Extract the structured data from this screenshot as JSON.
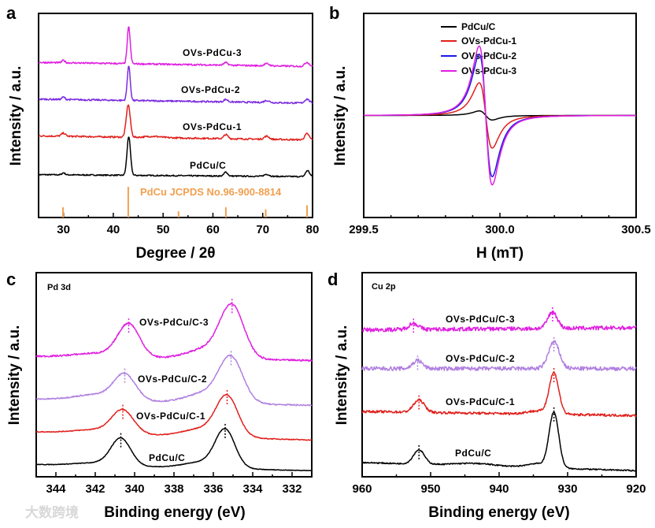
{
  "watermark": "大数跨境",
  "chart_data": [
    {
      "panel": "a",
      "type": "line",
      "xlabel": "Degree / 2θ",
      "ylabel": "Intensity / a.u.",
      "xlim": [
        25,
        80
      ],
      "ylim": [
        0,
        100
      ],
      "xticks": [
        30,
        40,
        50,
        60,
        70,
        80
      ],
      "xtick_labels": [
        "30",
        "40",
        "50",
        "60",
        "70",
        "80"
      ],
      "reference": {
        "label": "PdCu JCPDS No.96-900-8814",
        "color": "#f0a050",
        "lines": [
          [
            29.9,
            5
          ],
          [
            43.0,
            15
          ],
          [
            53.1,
            3
          ],
          [
            62.6,
            5
          ],
          [
            70.6,
            4
          ],
          [
            78.9,
            6
          ]
        ]
      },
      "series": [
        {
          "name": "PdCu/C",
          "color": "#000000",
          "baseline": [
            21,
            20
          ],
          "noise": 0.3,
          "peaks": [
            [
              30.0,
              1,
              0.3
            ],
            [
              43.1,
              19,
              0.35
            ],
            [
              62.6,
              2,
              0.35
            ],
            [
              70.8,
              1,
              0.5
            ],
            [
              79.0,
              3,
              0.4
            ]
          ]
        },
        {
          "name": "OVs-PdCu-1",
          "color": "#e0201c",
          "baseline": [
            40,
            38
          ],
          "noise": 0.4,
          "peaks": [
            [
              30.0,
              1.5,
              0.4
            ],
            [
              43.0,
              16,
              0.4
            ],
            [
              48.0,
              0.6,
              1.5
            ],
            [
              62.6,
              2,
              0.4
            ],
            [
              70.8,
              1.5,
              0.5
            ],
            [
              78.9,
              3,
              0.45
            ]
          ]
        },
        {
          "name": "OVs-PdCu-2",
          "color": "#7b2be0",
          "baseline": [
            58,
            56
          ],
          "noise": 0.4,
          "peaks": [
            [
              30.0,
              1.2,
              0.3
            ],
            [
              43.1,
              17,
              0.3
            ],
            [
              62.6,
              1.2,
              0.4
            ],
            [
              70.8,
              1,
              0.5
            ],
            [
              78.9,
              2,
              0.45
            ]
          ]
        },
        {
          "name": "OVs-PdCu-3",
          "color": "#e020e0",
          "baseline": [
            76,
            74
          ],
          "noise": 0.4,
          "peaks": [
            [
              30.0,
              1.2,
              0.3
            ],
            [
              43.1,
              18,
              0.3
            ],
            [
              62.6,
              1.2,
              0.4
            ],
            [
              70.8,
              1,
              0.5
            ],
            [
              78.9,
              2,
              0.45
            ]
          ]
        }
      ]
    },
    {
      "panel": "b",
      "type": "line",
      "xlabel": "H (mT)",
      "ylabel": "Intensity / a.u.",
      "xlim": [
        299.5,
        300.5
      ],
      "ylim": [
        -50,
        50
      ],
      "xticks": [
        299.5,
        300.0,
        300.5
      ],
      "xtick_labels": [
        "299.5",
        "300.0",
        "300.5"
      ],
      "legend_position": "top-right",
      "series": [
        {
          "name": "PdCu/C",
          "color": "#000000",
          "center": 299.948,
          "width": 0.024,
          "amplitude": 2.2,
          "baseline": 0
        },
        {
          "name": "OVs-PdCu-1",
          "color": "#e0201c",
          "center": 299.948,
          "width": 0.024,
          "amplitude": 16,
          "baseline": 0
        },
        {
          "name": "OVs-PdCu-2",
          "color": "#1a1ae6",
          "center": 299.948,
          "width": 0.024,
          "amplitude": 30,
          "baseline": 0
        },
        {
          "name": "OVs-PdCu-3",
          "color": "#e020e0",
          "center": 299.948,
          "width": 0.024,
          "amplitude": 34,
          "baseline": 0
        }
      ]
    },
    {
      "panel": "c",
      "type": "line",
      "corner_label": "Pd 3d",
      "xlabel": "Binding energy (eV)",
      "ylabel": "Intensity / a.u.",
      "xlim": [
        345,
        331
      ],
      "ylim": [
        0,
        100
      ],
      "xticks": [
        344,
        342,
        340,
        338,
        336,
        334,
        332
      ],
      "xtick_labels": [
        "344",
        "342",
        "340",
        "338",
        "336",
        "334",
        "332"
      ],
      "series": [
        {
          "name": "PdCu/C",
          "color": "#000000",
          "baseline": [
            6,
            3
          ],
          "noise": 0.15,
          "markers": [
            340.7,
            335.4
          ],
          "peaks": [
            [
              340.7,
              13,
              0.5
            ],
            [
              335.4,
              18,
              0.5
            ],
            [
              341.8,
              1.5,
              1.2
            ],
            [
              336.5,
              3,
              1.0
            ]
          ]
        },
        {
          "name": "OVs-PdCu/C-1",
          "color": "#e0201c",
          "baseline": [
            22,
            18
          ],
          "noise": 0.2,
          "markers": [
            340.6,
            335.3
          ],
          "peaks": [
            [
              340.6,
              11,
              0.55
            ],
            [
              335.3,
              19,
              0.55
            ],
            [
              341.8,
              2,
              1.2
            ],
            [
              336.5,
              4,
              1.0
            ]
          ]
        },
        {
          "name": "OVs-PdCu/C-2",
          "color": "#b080e0",
          "baseline": [
            38,
            35
          ],
          "noise": 0.3,
          "markers": [
            340.5,
            335.1
          ],
          "peaks": [
            [
              340.5,
              12,
              0.55
            ],
            [
              335.1,
              21,
              0.6
            ],
            [
              341.8,
              3,
              1.2
            ],
            [
              336.3,
              5,
              1.0
            ]
          ]
        },
        {
          "name": "OVs-PdCu/C-3",
          "color": "#e020e0",
          "baseline": [
            59,
            57
          ],
          "noise": 0.4,
          "markers": [
            340.3,
            335.05
          ],
          "peaks": [
            [
              340.3,
              16,
              0.55
            ],
            [
              335.05,
              25,
              0.6
            ],
            [
              341.8,
              2,
              1.2
            ],
            [
              336.3,
              5,
              1.0
            ]
          ]
        }
      ]
    },
    {
      "panel": "d",
      "type": "line",
      "corner_label": "Cu 2p",
      "xlabel": "Binding energy (eV)",
      "ylabel": "Intensity / a.u.",
      "xlim": [
        960,
        920
      ],
      "ylim": [
        0,
        100
      ],
      "xticks": [
        960,
        950,
        940,
        930,
        920
      ],
      "xtick_labels": [
        "960",
        "950",
        "940",
        "930",
        "920"
      ],
      "series": [
        {
          "name": "PdCu/C",
          "color": "#000000",
          "baseline": [
            7,
            3
          ],
          "noise": 0.3,
          "markers": [
            951.7,
            932.0
          ],
          "peaks": [
            [
              951.7,
              7,
              0.8
            ],
            [
              932.0,
              27,
              0.7
            ],
            [
              943.5,
              1.2,
              3
            ],
            [
              934.5,
              2,
              1.5
            ]
          ]
        },
        {
          "name": "OVs-PdCu/C-1",
          "color": "#e0201c",
          "baseline": [
            32,
            30
          ],
          "noise": 0.6,
          "markers": [
            951.7,
            932.0
          ],
          "peaks": [
            [
              951.7,
              6,
              0.8
            ],
            [
              932.0,
              20,
              0.7
            ],
            [
              934.5,
              1.5,
              1.5
            ]
          ]
        },
        {
          "name": "OVs-PdCu/C-2",
          "color": "#b080e0",
          "baseline": [
            53,
            53
          ],
          "noise": 1.0,
          "markers": [
            951.9,
            932.0
          ],
          "peaks": [
            [
              951.9,
              4,
              0.7
            ],
            [
              932.0,
              13,
              0.8
            ]
          ]
        },
        {
          "name": "OVs-PdCu/C-3",
          "color": "#e020e0",
          "baseline": [
            72,
            73
          ],
          "noise": 1.0,
          "markers": [
            952.5,
            932.2
          ],
          "peaks": [
            [
              952.5,
              3,
              0.7
            ],
            [
              932.2,
              8,
              0.7
            ]
          ]
        }
      ]
    }
  ]
}
